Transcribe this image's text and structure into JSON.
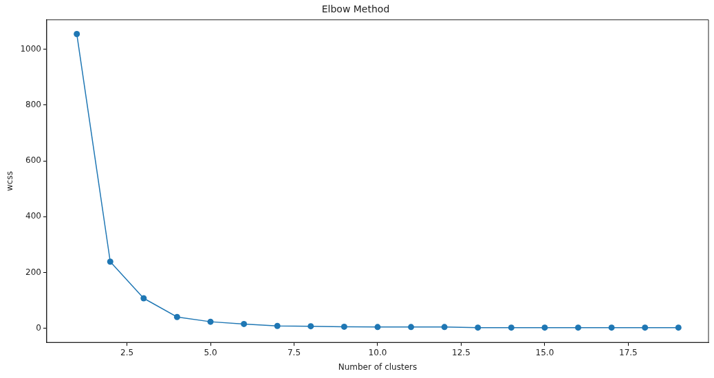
{
  "chart_data": {
    "type": "line",
    "title": "Elbow Method",
    "xlabel": "Number of clusters",
    "ylabel": "wcss",
    "x": [
      1,
      2,
      3,
      4,
      5,
      6,
      7,
      8,
      9,
      10,
      11,
      12,
      13,
      14,
      15,
      16,
      17,
      18,
      19
    ],
    "series": [
      {
        "color": "#1f77b4",
        "values": [
          1054,
          239,
          108,
          41,
          24,
          16,
          9,
          8,
          6,
          5,
          5,
          5,
          3,
          3,
          3,
          3,
          3,
          3,
          3
        ]
      }
    ],
    "xlim": [
      0.1,
      19.9
    ],
    "xticks": [
      {
        "value": 2.5,
        "label": "2.5"
      },
      {
        "value": 5,
        "label": "5.0"
      },
      {
        "value": 7.5,
        "label": "7.5"
      },
      {
        "value": 10,
        "label": "10.0"
      },
      {
        "value": 12.5,
        "label": "12.5"
      },
      {
        "value": 15,
        "label": "15.0"
      },
      {
        "value": 17.5,
        "label": "17.5"
      }
    ],
    "ylim": [
      -50,
      1105
    ],
    "yticks": [
      0,
      200,
      400,
      600,
      800,
      1000
    ],
    "marker": "circle",
    "line_style": "solid",
    "grid": false,
    "legend": false
  }
}
